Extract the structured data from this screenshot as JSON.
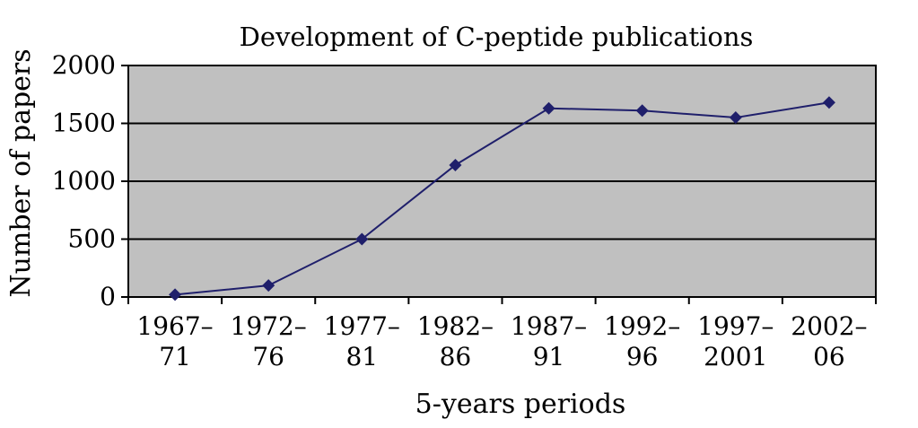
{
  "chart_data": {
    "type": "line",
    "title": "Development of C-peptide publications",
    "xlabel": "5-years periods",
    "ylabel": "Number of papers",
    "categories": [
      [
        "1967–",
        "71"
      ],
      [
        "1972–",
        "76"
      ],
      [
        "1977–",
        "81"
      ],
      [
        "1982–",
        "86"
      ],
      [
        "1987–",
        "91"
      ],
      [
        "1992–",
        "96"
      ],
      [
        "1997–",
        "2001"
      ],
      [
        "2002–",
        "06"
      ]
    ],
    "series": [
      {
        "name": "Number of papers",
        "values": [
          20,
          100,
          500,
          1140,
          1630,
          1610,
          1550,
          1680
        ]
      }
    ],
    "ylim": [
      0,
      2000
    ],
    "yticks": [
      0,
      500,
      1000,
      1500,
      2000
    ],
    "grid": true,
    "colors": {
      "plot_background": "#c0c0c0",
      "line": "#1f1f6b",
      "marker": "#1f1f6b",
      "grid": "#000000"
    }
  }
}
